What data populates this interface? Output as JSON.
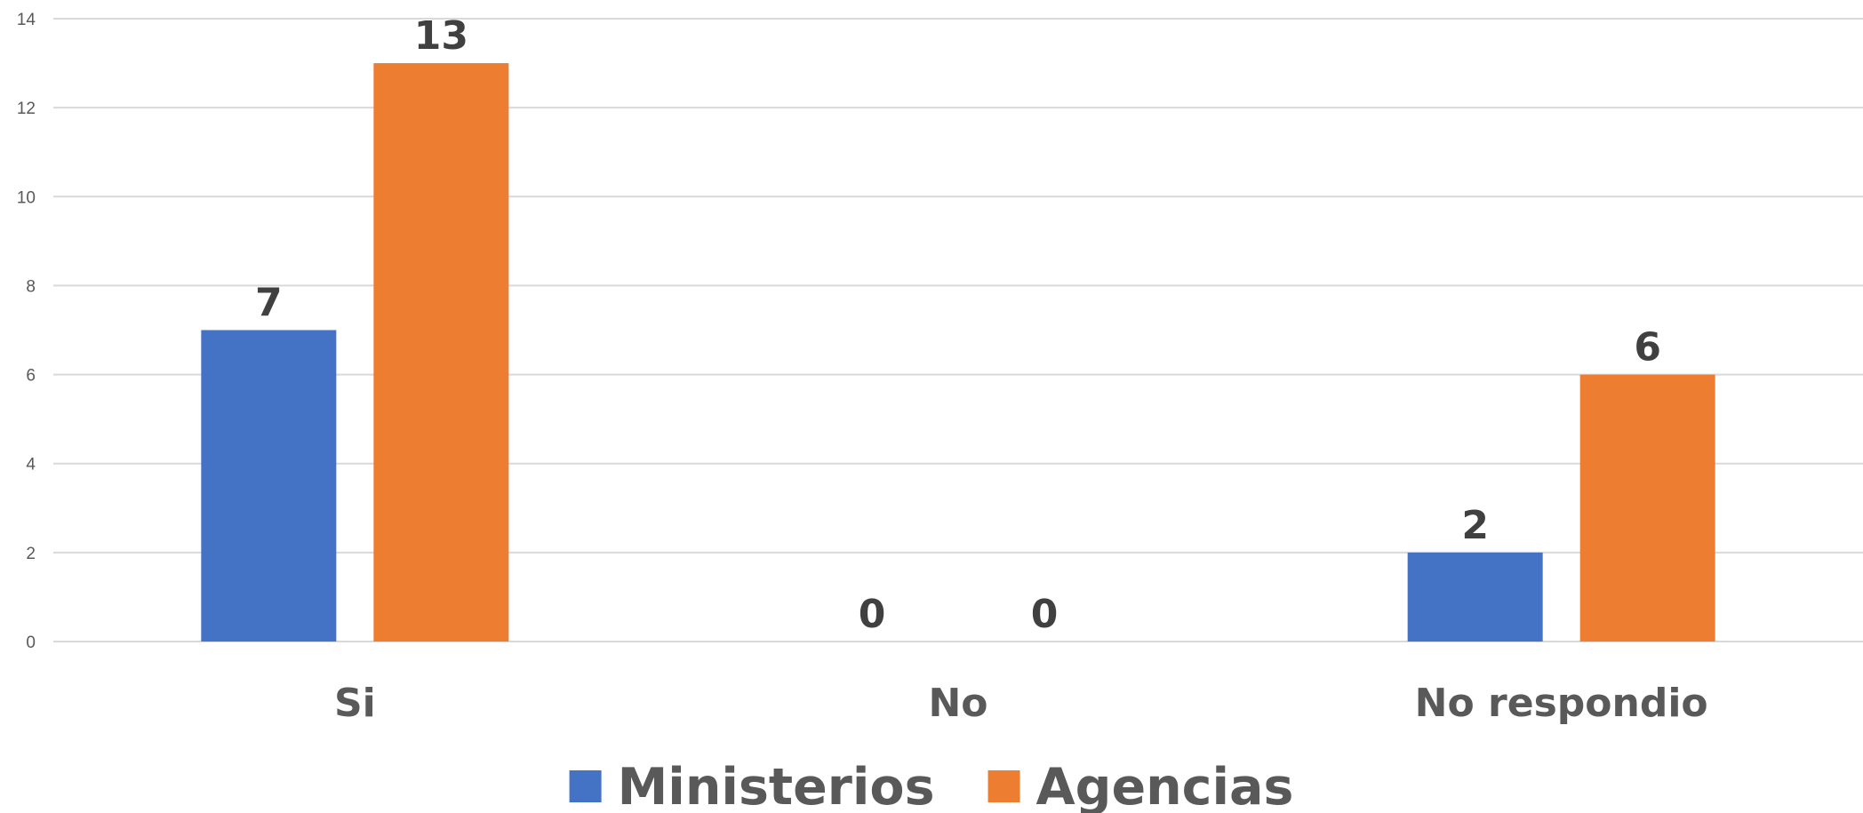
{
  "chart_data": {
    "type": "bar",
    "title": "",
    "xlabel": "",
    "ylabel": "",
    "categories": [
      "Si",
      "No",
      "No respondio"
    ],
    "series": [
      {
        "name": "Ministerios",
        "values": [
          7,
          0,
          2
        ],
        "color": "#4472C4"
      },
      {
        "name": "Agencias",
        "values": [
          13,
          0,
          6
        ],
        "color": "#ED7D31"
      }
    ],
    "ylim": [
      0,
      14
    ],
    "yticks": [
      "0",
      "2",
      "4",
      "6",
      "8",
      "10",
      "12",
      "14"
    ],
    "grid": true,
    "legend": "bottom"
  }
}
